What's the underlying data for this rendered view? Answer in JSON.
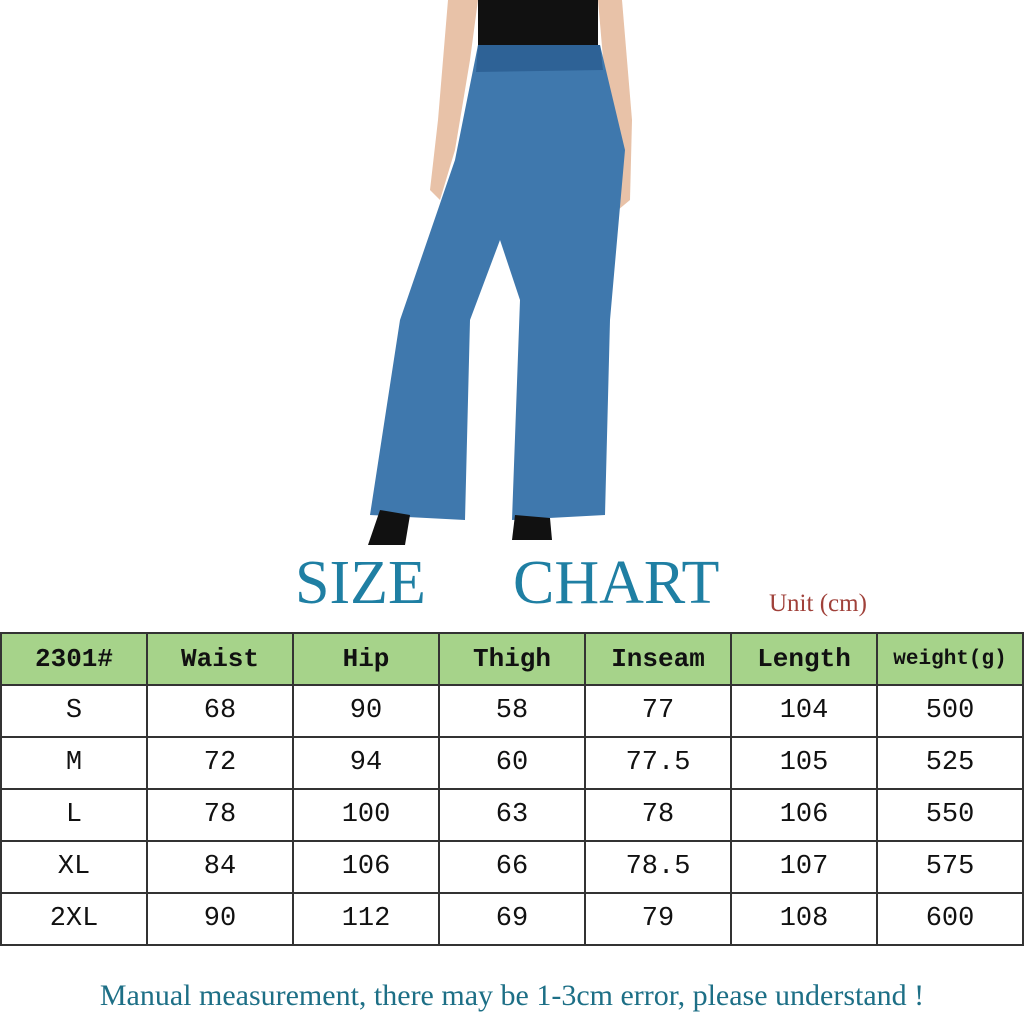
{
  "title": {
    "word1": "SIZE",
    "word2": "CHART",
    "unit": "Unit (cm)"
  },
  "table": {
    "headers": [
      "2301#",
      "Waist",
      "Hip",
      "Thigh",
      "Inseam",
      "Length",
      "weight(g)"
    ],
    "rows": [
      [
        "S",
        "68",
        "90",
        "58",
        "77",
        "104",
        "500"
      ],
      [
        "M",
        "72",
        "94",
        "60",
        "77.5",
        "105",
        "525"
      ],
      [
        "L",
        "78",
        "100",
        "63",
        "78",
        "106",
        "550"
      ],
      [
        "XL",
        "84",
        "106",
        "66",
        "78.5",
        "107",
        "575"
      ],
      [
        "2XL",
        "90",
        "112",
        "69",
        "79",
        "108",
        "600"
      ]
    ]
  },
  "note": "Manual measurement, there may be 1-3cm error, please understand !",
  "colors": {
    "header_bg": "#a6d38a",
    "title": "#1f7fa3",
    "unit": "#a0413a",
    "note": "#1d6f86",
    "denim": "#3f78ad"
  }
}
